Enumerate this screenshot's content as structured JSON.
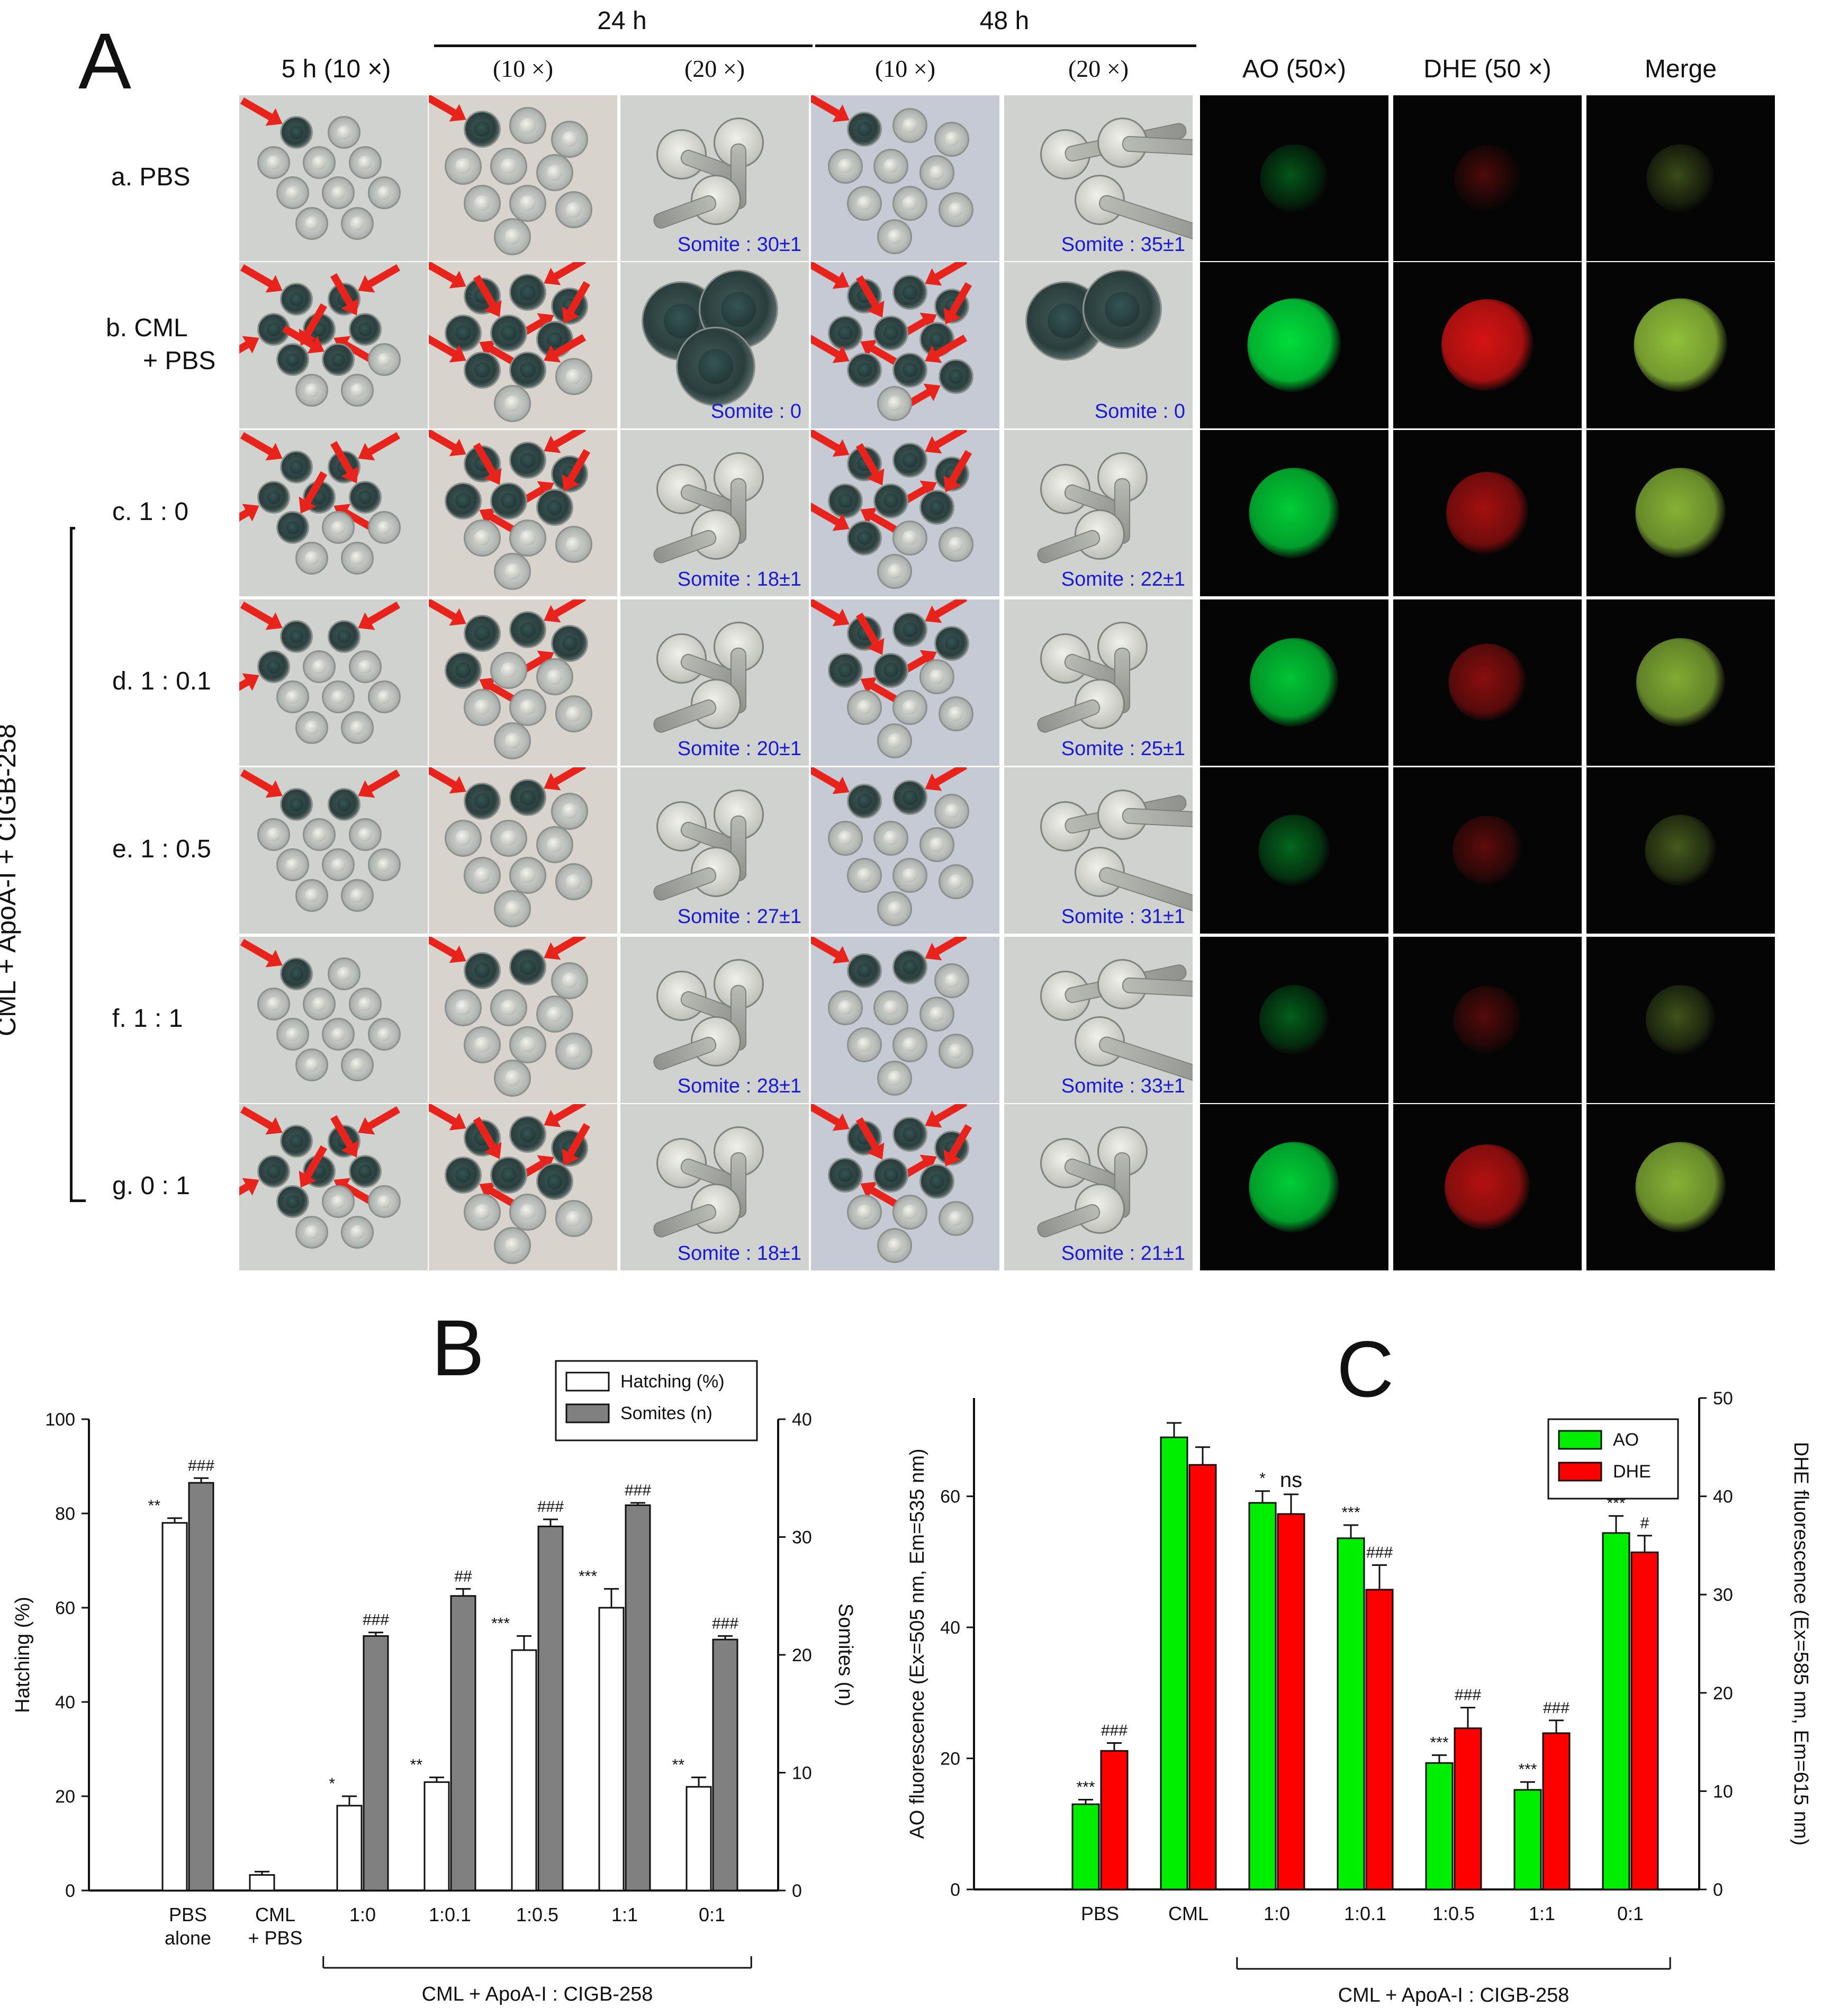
{
  "figure": {
    "panel_a_letter": "A",
    "panel_b_letter": "B",
    "panel_c_letter": "C"
  },
  "grid": {
    "time_headers": [
      "24 h",
      "48 h"
    ],
    "col_headers": [
      "5 h  (10 ×)",
      "(10 ×)",
      "(20 ×)",
      "(10 ×)",
      "(20 ×)",
      "AO (50×)",
      "DHE (50 ×)",
      "Merge"
    ],
    "side_bracket_label": "CML + ApoA-I + CIGB-258",
    "rows": [
      {
        "label": "a. PBS",
        "label2": "",
        "somite24": "Somite : 30±1",
        "somite48": "Somite : 35±1",
        "stained": [
          1,
          1,
          0,
          1
        ],
        "ao_level": 0.15,
        "dhe_level": 0.1
      },
      {
        "label": "b. CML",
        "label2": "+ PBS",
        "somite24": "Somite : 0",
        "somite48": "Somite : 0",
        "stained": [
          7,
          8,
          3,
          9
        ],
        "ao_level": 0.95,
        "dhe_level": 0.9
      },
      {
        "label": "c. 1 : 0",
        "label2": "",
        "somite24": "Somite : 18±1",
        "somite48": "Somite : 22±1",
        "stained": [
          6,
          6,
          0,
          7
        ],
        "ao_level": 0.85,
        "dhe_level": 0.6
      },
      {
        "label": "d. 1 : 0.1",
        "label2": "",
        "somite24": "Somite : 20±1",
        "somite48": "Somite : 25±1",
        "stained": [
          3,
          4,
          0,
          5
        ],
        "ao_level": 0.8,
        "dhe_level": 0.45
      },
      {
        "label": "e. 1 : 0.5",
        "label2": "",
        "somite24": "Somite : 27±1",
        "somite48": "Somite : 31±1",
        "stained": [
          2,
          2,
          0,
          2
        ],
        "ao_level": 0.25,
        "dhe_level": 0.2
      },
      {
        "label": "f. 1 : 1",
        "label2": "",
        "somite24": "Somite : 28±1",
        "somite48": "Somite : 33±1",
        "stained": [
          1,
          2,
          0,
          2
        ],
        "ao_level": 0.2,
        "dhe_level": 0.15
      },
      {
        "label": "g. 0 : 1",
        "label2": "",
        "somite24": "Somite : 18±1",
        "somite48": "Somite : 21±1",
        "stained": [
          6,
          6,
          0,
          6
        ],
        "ao_level": 0.85,
        "dhe_level": 0.7
      }
    ]
  },
  "colors": {
    "hatching_bar": "#ffffff",
    "somites_bar": "#808080",
    "ao": "#00ee00",
    "dhe": "#ff0000",
    "somite_text": "#1a1ad6",
    "arrow": "#e8231c"
  },
  "chart_data": [
    {
      "type": "bar",
      "categories": [
        "PBS\nalone",
        "CML\n+ PBS",
        "1:0",
        "1:0.1",
        "1:0.5",
        "1:1",
        "0:1"
      ],
      "category_group_label": "CML + ApoA-I : CIGB-258",
      "category_group_span": [
        2,
        6
      ],
      "ylabel": "Hatching (%)",
      "ylabel_right": "Somites (n)",
      "ylim": [
        0,
        100
      ],
      "ylim_right": [
        0,
        40
      ],
      "yticks": [
        "0",
        "20",
        "40",
        "60",
        "80",
        "100"
      ],
      "yticks_right": [
        "0",
        "10",
        "20",
        "30",
        "40"
      ],
      "legend_position": "top-right",
      "series": [
        {
          "name": "Hatching (%)",
          "axis": "left",
          "values": [
            78,
            3.3,
            18,
            23,
            51,
            60,
            22
          ],
          "errors": [
            1,
            0.7,
            2,
            1,
            3,
            4,
            2
          ],
          "annotations": [
            "**",
            "",
            "*",
            "**",
            "***",
            "***",
            "**"
          ]
        },
        {
          "name": "Somites (n)",
          "axis": "right",
          "values": [
            34.6,
            0,
            21.6,
            25,
            30.9,
            32.7,
            21.3
          ],
          "errors": [
            0.4,
            0,
            0.3,
            0.6,
            0.6,
            0.2,
            0.3
          ],
          "annotations": [
            "###",
            "",
            "###",
            "##",
            "###",
            "###",
            "###"
          ]
        }
      ]
    },
    {
      "type": "bar",
      "categories": [
        "PBS",
        "CML",
        "1:0",
        "1:0.1",
        "1:0.5",
        "1:1",
        "0:1"
      ],
      "category_group_label": "CML + ApoA-I : CIGB-258",
      "category_group_span": [
        2,
        6
      ],
      "ylabel": "AO fluorescence (Ex=505 nm, Em=535 nm)",
      "ylabel_right": "DHE fluorescence (Ex=585 nm, Em=615 nm)",
      "ylim": [
        0,
        75
      ],
      "ylim_right": [
        0,
        50
      ],
      "yticks": [
        "0",
        "20",
        "40",
        "60"
      ],
      "yticks_right": [
        "0",
        "10",
        "20",
        "30",
        "40",
        "50"
      ],
      "legend_position": "top-right",
      "series": [
        {
          "name": "AO",
          "axis": "left",
          "values": [
            13,
            69,
            59,
            53.6,
            19.3,
            15.2,
            54.4
          ],
          "errors": [
            0.7,
            2.2,
            1.8,
            2,
            1.2,
            1.2,
            2.6
          ],
          "annotations": [
            "***",
            "",
            "*",
            "***",
            "***",
            "***",
            "***"
          ]
        },
        {
          "name": "DHE",
          "axis": "right",
          "values": [
            14.1,
            43.2,
            38.2,
            30.5,
            16.4,
            15.9,
            34.3
          ],
          "errors": [
            0.8,
            1.8,
            2,
            2.5,
            2.1,
            1.3,
            1.7
          ],
          "annotations": [
            "###",
            "",
            "ns",
            "###",
            "###",
            "###",
            "#"
          ]
        }
      ]
    }
  ]
}
